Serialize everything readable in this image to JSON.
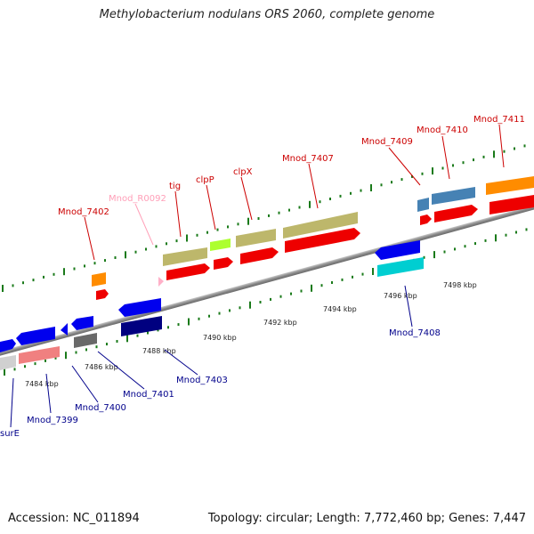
{
  "title": "Methylobacterium nodulans ORS 2060, complete genome",
  "footer": {
    "accession": "Accession: NC_011894",
    "topology": "Topology: circular; Length: 7,772,460 bp; Genes: 7,447"
  },
  "scale": {
    "labels": [
      "7484 kbp",
      "7486 kbp",
      "7488 kbp",
      "7490 kbp",
      "7492 kbp",
      "7494 kbp",
      "7496 kbp",
      "7498 kbp"
    ]
  },
  "colors": {
    "forward_label": "#cc0000",
    "reverse_label": "#00008b",
    "rna_label": "#ff9fb8",
    "backbone": "#888888",
    "tick": "#1a7a1a"
  },
  "genes_forward": [
    {
      "name": "Mnod_7402",
      "color": "#ff8c00"
    },
    {
      "name": "Mnod_R0092",
      "color": "#ffb0c8"
    },
    {
      "name": "tig",
      "color": "#bdb76b"
    },
    {
      "name": "clpP",
      "color": "#adff2f"
    },
    {
      "name": "clpX",
      "color": "#bdb76b"
    },
    {
      "name": "Mnod_7407",
      "color": "#bdb76b"
    },
    {
      "name": "Mnod_7409",
      "color": "#4682b4"
    },
    {
      "name": "Mnod_7410",
      "color": "#4682b4"
    },
    {
      "name": "Mnod_7411",
      "color": "#ff8c00"
    }
  ],
  "genes_reverse": [
    {
      "name": "surE",
      "color": "#0000ee"
    },
    {
      "name": "Mnod_7399",
      "color": "#f08080"
    },
    {
      "name": "Mnod_7400",
      "color": "#0000ee"
    },
    {
      "name": "Mnod_7401",
      "color": "#696969"
    },
    {
      "name": "Mnod_7403",
      "color": "#0000ee"
    },
    {
      "name": "Mnod_7408",
      "color": "#00ced1"
    }
  ]
}
